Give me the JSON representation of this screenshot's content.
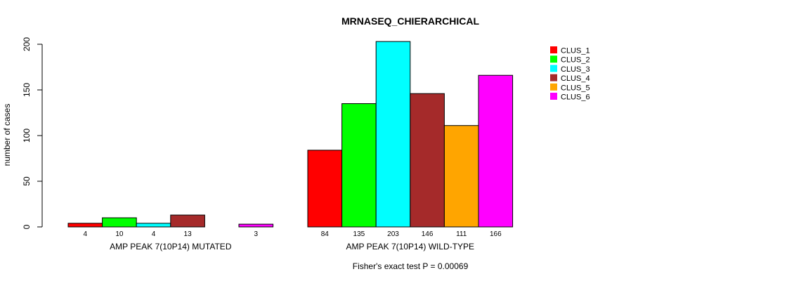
{
  "chart_data": {
    "type": "bar",
    "title": "MRNASEQ_CHIERARCHICAL",
    "ylabel": "number of cases",
    "ylim": [
      0,
      200
    ],
    "yticks": [
      "0",
      "50",
      "100",
      "150",
      "200"
    ],
    "footnote": "Fisher's exact test P = 0.00069",
    "series": [
      {
        "name": "CLUS_1",
        "color": "#FF0000"
      },
      {
        "name": "CLUS_2",
        "color": "#00FF00"
      },
      {
        "name": "CLUS_3",
        "color": "#00FFFF"
      },
      {
        "name": "CLUS_4",
        "color": "#A52A2A"
      },
      {
        "name": "CLUS_5",
        "color": "#FFA500"
      },
      {
        "name": "CLUS_6",
        "color": "#FF00FF"
      }
    ],
    "groups": [
      {
        "label": "AMP PEAK  7(10P14) MUTATED",
        "values": [
          4,
          10,
          4,
          13,
          0,
          3
        ],
        "value_labels": [
          "4",
          "10",
          "4",
          "13",
          "",
          "3"
        ]
      },
      {
        "label": "AMP PEAK  7(10P14) WILD-TYPE",
        "values": [
          84,
          135,
          203,
          146,
          111,
          166
        ],
        "value_labels": [
          "84",
          "135",
          "203",
          "146",
          "111",
          "166"
        ]
      }
    ]
  }
}
